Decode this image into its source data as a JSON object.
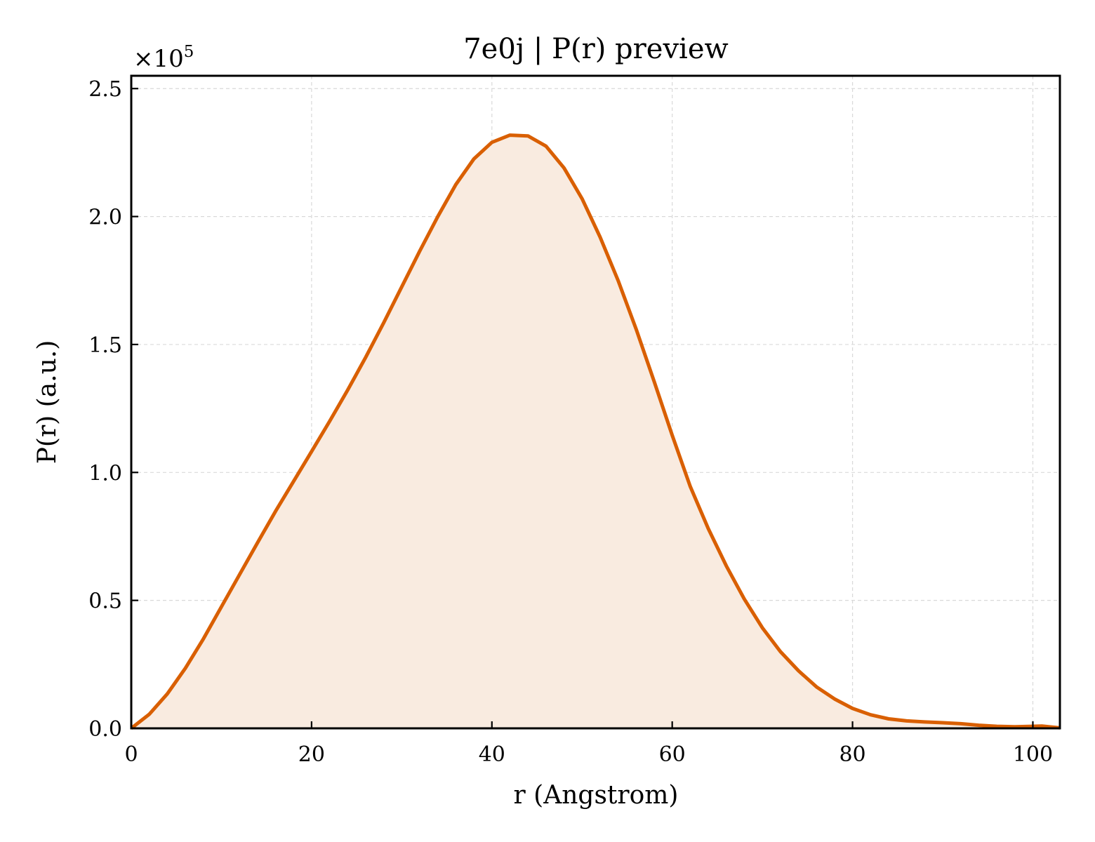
{
  "chart_data": {
    "type": "area",
    "title": "7e0j | P(r) preview",
    "xlabel": "r (Angstrom)",
    "ylabel": "P(r) (a.u.)",
    "y_multiplier_label": "×10",
    "y_multiplier_exponent": "5",
    "xlim": [
      0,
      103
    ],
    "ylim": [
      0,
      2.55
    ],
    "xticks": [
      0,
      20,
      40,
      60,
      80,
      100
    ],
    "xtick_labels": [
      "0",
      "20",
      "40",
      "60",
      "80",
      "100"
    ],
    "yticks": [
      0.0,
      0.5,
      1.0,
      1.5,
      2.0,
      2.5
    ],
    "ytick_labels": [
      "0.0",
      "0.5",
      "1.0",
      "1.5",
      "2.0",
      "2.5"
    ],
    "grid": true,
    "legend": "none",
    "colors": {
      "line": "#d95f02",
      "fill": "#f9ebe0"
    },
    "series": [
      {
        "x": [
          0,
          2,
          4,
          6,
          8,
          10,
          12,
          14,
          16,
          18,
          20,
          22,
          24,
          26,
          28,
          30,
          32,
          34,
          36,
          38,
          40,
          42,
          44,
          46,
          48,
          50,
          52,
          54,
          56,
          58,
          60,
          62,
          64,
          66,
          68,
          70,
          72,
          74,
          76,
          78,
          80,
          82,
          84,
          86,
          88,
          90,
          92,
          94,
          96,
          98,
          100,
          101,
          103
        ],
        "y": [
          0.0,
          0.055,
          0.135,
          0.235,
          0.35,
          0.475,
          0.6,
          0.725,
          0.848,
          0.965,
          1.082,
          1.2,
          1.322,
          1.45,
          1.585,
          1.725,
          1.865,
          2.0,
          2.125,
          2.225,
          2.29,
          2.318,
          2.315,
          2.275,
          2.19,
          2.07,
          1.92,
          1.75,
          1.56,
          1.355,
          1.145,
          0.945,
          0.78,
          0.635,
          0.505,
          0.393,
          0.3,
          0.225,
          0.162,
          0.115,
          0.078,
          0.053,
          0.037,
          0.029,
          0.025,
          0.022,
          0.018,
          0.012,
          0.008,
          0.006,
          0.008,
          0.009,
          0.002
        ]
      }
    ]
  }
}
